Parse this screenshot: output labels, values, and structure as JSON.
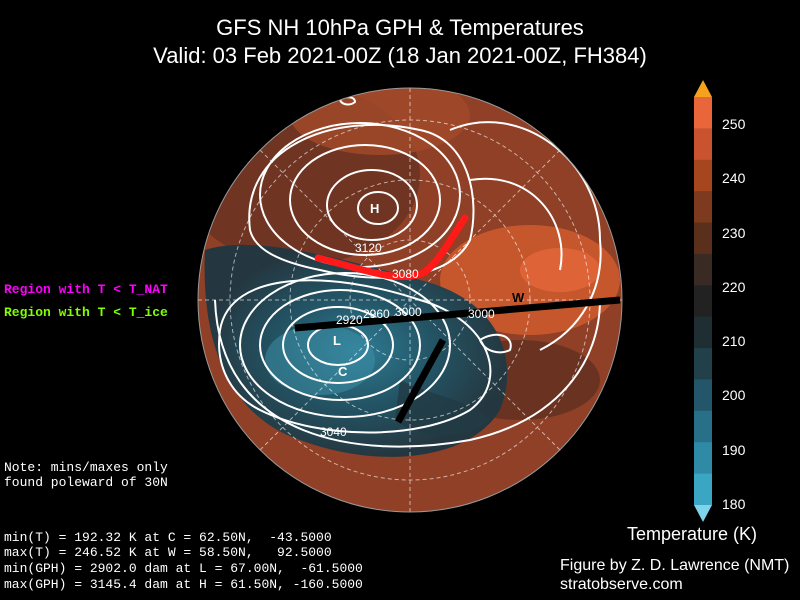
{
  "title": {
    "line1": "GFS NH 10hPa GPH & Temperatures",
    "line2": "Valid: 03 Feb 2021-00Z  (18 Jan 2021-00Z, FH384)"
  },
  "legend": {
    "nat": {
      "label": "Region with T < T_NAT",
      "color": "#ff00ff"
    },
    "ice": {
      "label": "Region with T < T_ice",
      "color": "#7fff00"
    }
  },
  "note": {
    "line1": "Note: mins/maxes only",
    "line2": "found poleward of 30N"
  },
  "stats": {
    "line1": "min(T) = 192.32 K at C = 62.50N,  -43.5000",
    "line2": "max(T) = 246.52 K at W = 58.50N,   92.5000",
    "line3": "min(GPH) = 2902.0 dam at L = 67.00N,  -61.5000",
    "line4": "max(GPH) = 3145.4 dam at H = 61.50N, -160.5000"
  },
  "map": {
    "markers": {
      "H": "H",
      "L": "L",
      "C": "C",
      "W": "W"
    },
    "contour_labels": [
      "3120",
      "3080",
      "2960",
      "3000",
      "3000",
      "2920",
      "3040"
    ],
    "annotation_colors": {
      "ridge_line": "#ff1a1a",
      "trough_axis": "#000000"
    }
  },
  "colorbar": {
    "title": "Temperature (K)",
    "ticks": [
      "250",
      "240",
      "230",
      "220",
      "210",
      "200",
      "190",
      "180"
    ],
    "colors": [
      "#f5a21d",
      "#e8663a",
      "#c8532e",
      "#a5461f",
      "#7d3a1e",
      "#5a301c",
      "#3a2a24",
      "#222222",
      "#1f2e33",
      "#21404a",
      "#23566a",
      "#287088",
      "#2f8aa6",
      "#3aa6c4",
      "#7fd3ea"
    ]
  },
  "credit": {
    "line1": "Figure by Z. D. Lawrence (NMT)",
    "line2": "stratobserve.com"
  }
}
